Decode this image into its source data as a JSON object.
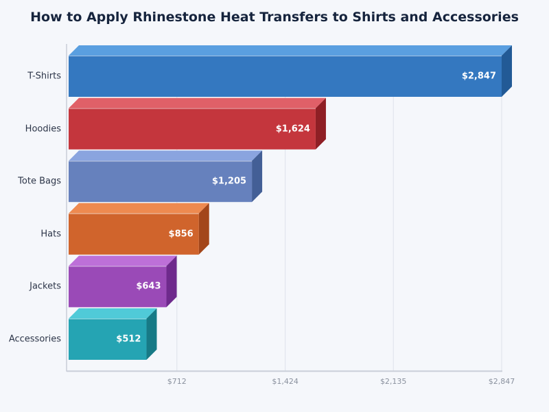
{
  "title": "How to Apply Rhinestone Heat Transfers to Shirts and Accessories",
  "chart_data": {
    "type": "bar",
    "orientation": "horizontal",
    "style": "3d",
    "title": "How to Apply Rhinestone Heat Transfers to Shirts and Accessories",
    "xlabel": "",
    "ylabel": "",
    "categories": [
      "T-Shirts",
      "Hoodies",
      "Tote Bags",
      "Hats",
      "Jackets",
      "Accessories"
    ],
    "values": [
      2847,
      1624,
      1205,
      856,
      643,
      512
    ],
    "value_labels": [
      "$2,847",
      "$1,624",
      "$1,205",
      "$856",
      "$643",
      "$512"
    ],
    "xlim": [
      0,
      2847
    ],
    "x_ticks": [
      712,
      1424,
      2135,
      2847
    ],
    "x_tick_labels": [
      "$712",
      "$1,424",
      "$2,135",
      "$2,847"
    ],
    "grid": "vertical",
    "legend": "none",
    "colors": [
      {
        "front": "#3478c0",
        "top": "#5a9fe0",
        "side": "#225a96"
      },
      {
        "front": "#c4363d",
        "top": "#e06068",
        "side": "#8f1f25"
      },
      {
        "front": "#6681bd",
        "top": "#8aa4df",
        "side": "#435f96"
      },
      {
        "front": "#d0642c",
        "top": "#ee8a50",
        "side": "#a3461a"
      },
      {
        "front": "#9a4ab7",
        "top": "#bd70d8",
        "side": "#6e2a8c"
      },
      {
        "front": "#25a4b3",
        "top": "#50cad8",
        "side": "#177a86"
      }
    ]
  }
}
